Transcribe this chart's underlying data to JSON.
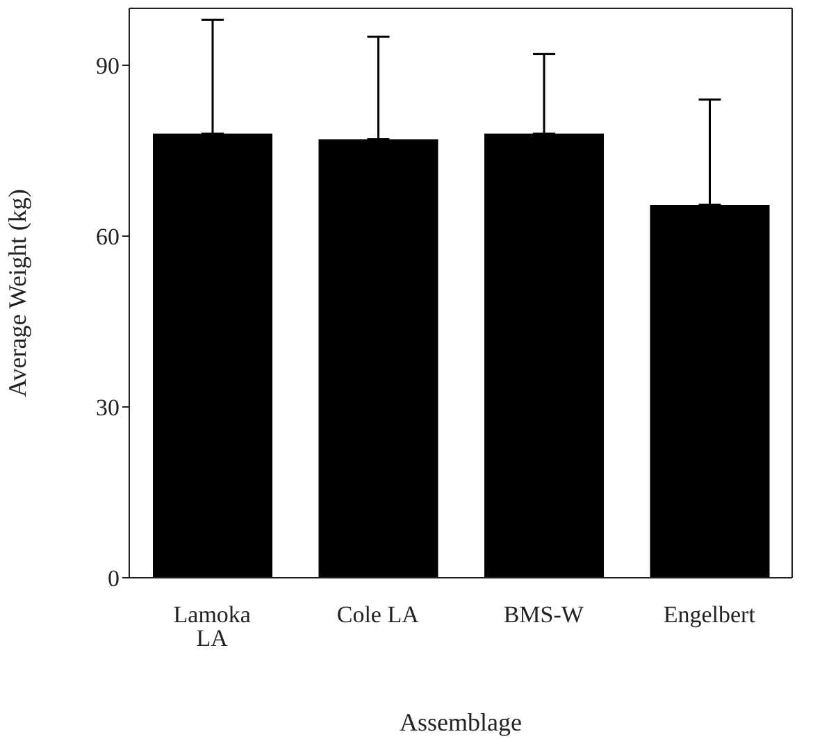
{
  "chart_data": {
    "type": "bar",
    "xlabel": "Assemblage",
    "ylabel": "Average Weight (kg)",
    "categories": [
      "Lamoka LA",
      "Cole LA",
      "BMS-W",
      "Engelbert"
    ],
    "values": [
      78,
      77,
      78,
      65.5
    ],
    "errors": [
      [
        78,
        98
      ],
      [
        77,
        95
      ],
      [
        78,
        92
      ],
      [
        65.5,
        84
      ]
    ],
    "color": "#000000",
    "ylim": [
      0,
      100
    ],
    "yticks": [
      0,
      30,
      60,
      90
    ],
    "grid": false,
    "legend": false
  }
}
